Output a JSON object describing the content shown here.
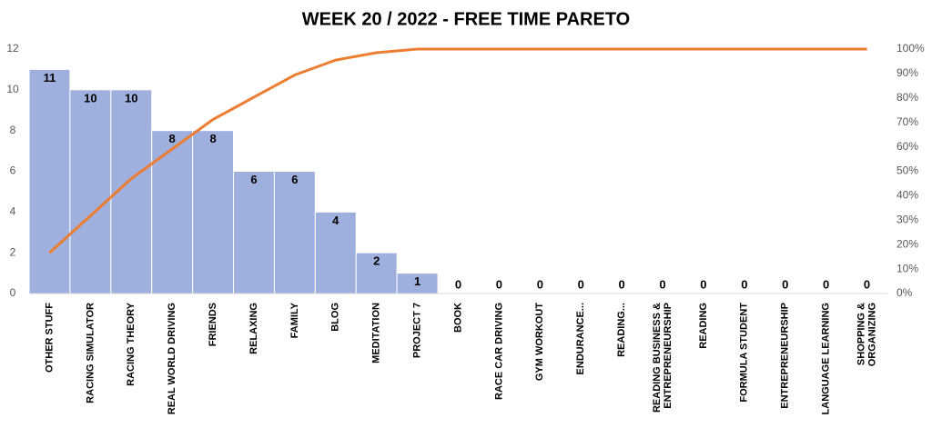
{
  "chart_data": {
    "type": "pareto",
    "title": "WEEK 20 / 2022 - FREE TIME PARETO",
    "categories": [
      "OTHER STUFF",
      "RACING SIMULATOR",
      "RACING THEORY",
      "REAL WORLD DRIVING",
      "FRIENDS",
      "RELAXING",
      "FAMILY",
      "BLOG",
      "MEDITATION",
      "PROJECT 7",
      "BOOK",
      "RACE CAR DRIVING",
      "GYM WORKOUT",
      "ENDURANCE...",
      "READING...",
      "READING BUSINESS & ENTREPRENEURSHIP",
      "READING",
      "FORMULA STUDENT",
      "ENTREPRENEURSHIP",
      "LANGUAGE LEARNING",
      "SHOPPING & ORGANIZING"
    ],
    "values": [
      11,
      10,
      10,
      8,
      8,
      6,
      6,
      4,
      2,
      1,
      0,
      0,
      0,
      0,
      0,
      0,
      0,
      0,
      0,
      0,
      0
    ],
    "color": "#9fb0de",
    "line": {
      "color": "#ed7d31",
      "axis": "y2",
      "values": [
        16.7,
        31.8,
        47.0,
        59.1,
        71.2,
        80.3,
        89.4,
        95.5,
        98.5,
        100,
        100,
        100,
        100,
        100,
        100,
        100,
        100,
        100,
        100,
        100,
        100
      ]
    },
    "ylim": [
      0,
      12
    ],
    "yticks": [
      0,
      2,
      4,
      6,
      8,
      10,
      12
    ],
    "y2lim": [
      0,
      100
    ],
    "y2ticks": [
      {
        "value": 0,
        "label": "0%"
      },
      {
        "value": 10,
        "label": "10%"
      },
      {
        "value": 20,
        "label": "20%"
      },
      {
        "value": 30,
        "label": "30%"
      },
      {
        "value": 40,
        "label": "40%"
      },
      {
        "value": 50,
        "label": "50%"
      },
      {
        "value": 60,
        "label": "60%"
      },
      {
        "value": 70,
        "label": "70%"
      },
      {
        "value": 80,
        "label": "80%"
      },
      {
        "value": 90,
        "label": "90%"
      },
      {
        "value": 100,
        "label": "100%"
      }
    ],
    "grid": false
  }
}
